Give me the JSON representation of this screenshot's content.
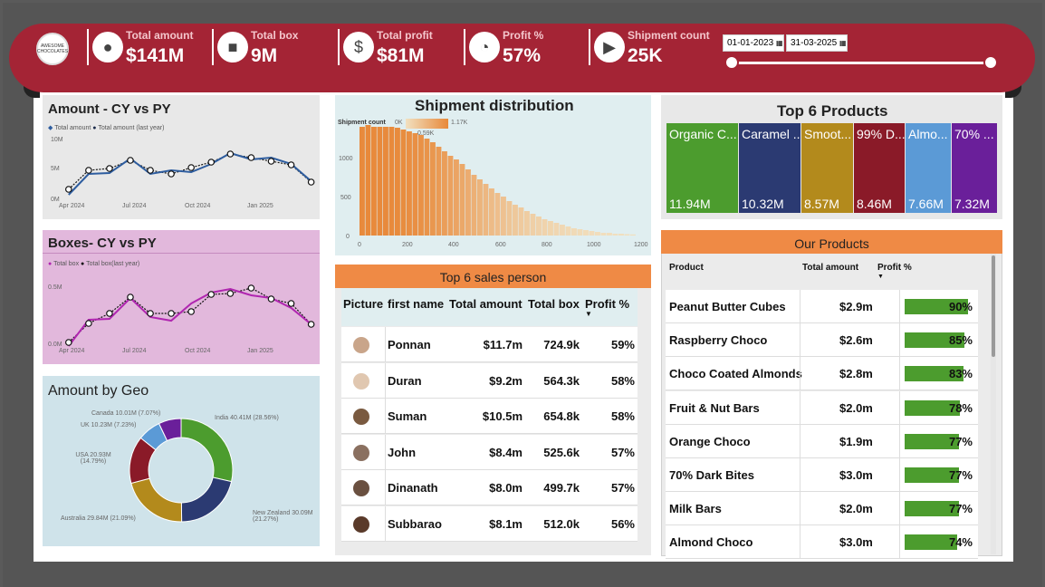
{
  "colors": {
    "brand": "#a42435",
    "cy_line": "#2e5d9f",
    "box_line": "#b026b0",
    "bar": "#e8893a",
    "profit_bar": "#4c9c2e"
  },
  "header": {
    "logo_text": "AWESOME CHOCOLATES",
    "kpis": [
      {
        "label": "Total amount",
        "value": "$141M",
        "icon": "coins-icon"
      },
      {
        "label": "Total box",
        "value": "9M",
        "icon": "box-icon"
      },
      {
        "label": "Total profit",
        "value": "$81M",
        "icon": "money-icon"
      },
      {
        "label": "Profit %",
        "value": "57%",
        "icon": "gauge-icon"
      },
      {
        "label": "Shipment count",
        "value": "25K",
        "icon": "truck-icon"
      }
    ],
    "date_from": "01-01-2023",
    "date_to": "31-03-2025"
  },
  "amount_chart": {
    "title": "Amount - CY vs PY",
    "legend": [
      "Total amount",
      "Total amount (last year)"
    ],
    "y_ticks": [
      "10M",
      "5M",
      "0M"
    ],
    "x_ticks": [
      "Apr 2024",
      "Jul 2024",
      "Oct 2024",
      "Jan 2025"
    ]
  },
  "boxes_chart": {
    "title": "Boxes- CY vs PY",
    "legend": [
      "Total box",
      "Total box(last year)"
    ],
    "y_ticks": [
      "0.5M",
      "0.0M"
    ],
    "x_ticks": [
      "Apr 2024",
      "Jul 2024",
      "Oct 2024",
      "Jan 2025"
    ]
  },
  "geo_chart": {
    "title": "Amount by Geo",
    "labels": [
      "India 40.41M (28.56%)",
      "New Zealand 30.09M (21.27%)",
      "Australia 29.84M (21.09%)",
      "USA 20.93M (14.79%)",
      "UK 10.23M (7.23%)",
      "Canada 10.01M (7.07%)"
    ]
  },
  "shipment_chart": {
    "title": "Shipment distribution",
    "legend_label": "Shipment count",
    "legend_min": "0K",
    "legend_max": "1.17K",
    "legend_mid": "0.59K",
    "y_ticks": [
      "1000",
      "500",
      "0"
    ],
    "x_ticks": [
      "0",
      "200",
      "400",
      "600",
      "800",
      "1000",
      "1200"
    ]
  },
  "top_products": {
    "title": "Top 6 Products",
    "items": [
      {
        "name": "Organic C...",
        "value": "11.94M",
        "color": "#4c9c2e"
      },
      {
        "name": "Caramel ...",
        "value": "10.32M",
        "color": "#2b3a72"
      },
      {
        "name": "Smoot...",
        "value": "8.57M",
        "color": "#b38a1c"
      },
      {
        "name": "99% D...",
        "value": "8.46M",
        "color": "#8a1a28"
      },
      {
        "name": "Almo...",
        "value": "7.66M",
        "color": "#5b9ad6"
      },
      {
        "name": "70% ...",
        "value": "7.32M",
        "color": "#6a1f9a"
      }
    ]
  },
  "sales_people": {
    "title": "Top 6 sales person",
    "columns": [
      "Picture",
      "first name",
      "Total amount",
      "Total box",
      "Profit %"
    ],
    "rows": [
      {
        "name": "Ponnan",
        "amount": "$11.7m",
        "box": "724.9k",
        "profit": "59%"
      },
      {
        "name": "Duran",
        "amount": "$9.2m",
        "box": "564.3k",
        "profit": "58%"
      },
      {
        "name": "Suman",
        "amount": "$10.5m",
        "box": "654.8k",
        "profit": "58%"
      },
      {
        "name": "John",
        "amount": "$8.4m",
        "box": "525.6k",
        "profit": "57%"
      },
      {
        "name": "Dinanath",
        "amount": "$8.0m",
        "box": "499.7k",
        "profit": "57%"
      },
      {
        "name": "Subbarao",
        "amount": "$8.1m",
        "box": "512.0k",
        "profit": "56%"
      }
    ]
  },
  "our_products": {
    "title": "Our Products",
    "columns": [
      "Product",
      "Total amount",
      "Profit %"
    ],
    "rows": [
      {
        "name": "Peanut Butter Cubes",
        "amount": "$2.9m",
        "profit": "90%",
        "pct": 90
      },
      {
        "name": "Raspberry Choco",
        "amount": "$2.6m",
        "profit": "85%",
        "pct": 85
      },
      {
        "name": "Choco Coated Almonds",
        "amount": "$2.8m",
        "profit": "83%",
        "pct": 83
      },
      {
        "name": "Fruit & Nut Bars",
        "amount": "$2.0m",
        "profit": "78%",
        "pct": 78
      },
      {
        "name": "Orange Choco",
        "amount": "$1.9m",
        "profit": "77%",
        "pct": 77
      },
      {
        "name": "70% Dark Bites",
        "amount": "$3.0m",
        "profit": "77%",
        "pct": 77
      },
      {
        "name": "Milk Bars",
        "amount": "$2.0m",
        "profit": "77%",
        "pct": 77
      },
      {
        "name": "Almond Choco",
        "amount": "$3.0m",
        "profit": "74%",
        "pct": 74
      }
    ]
  }
}
